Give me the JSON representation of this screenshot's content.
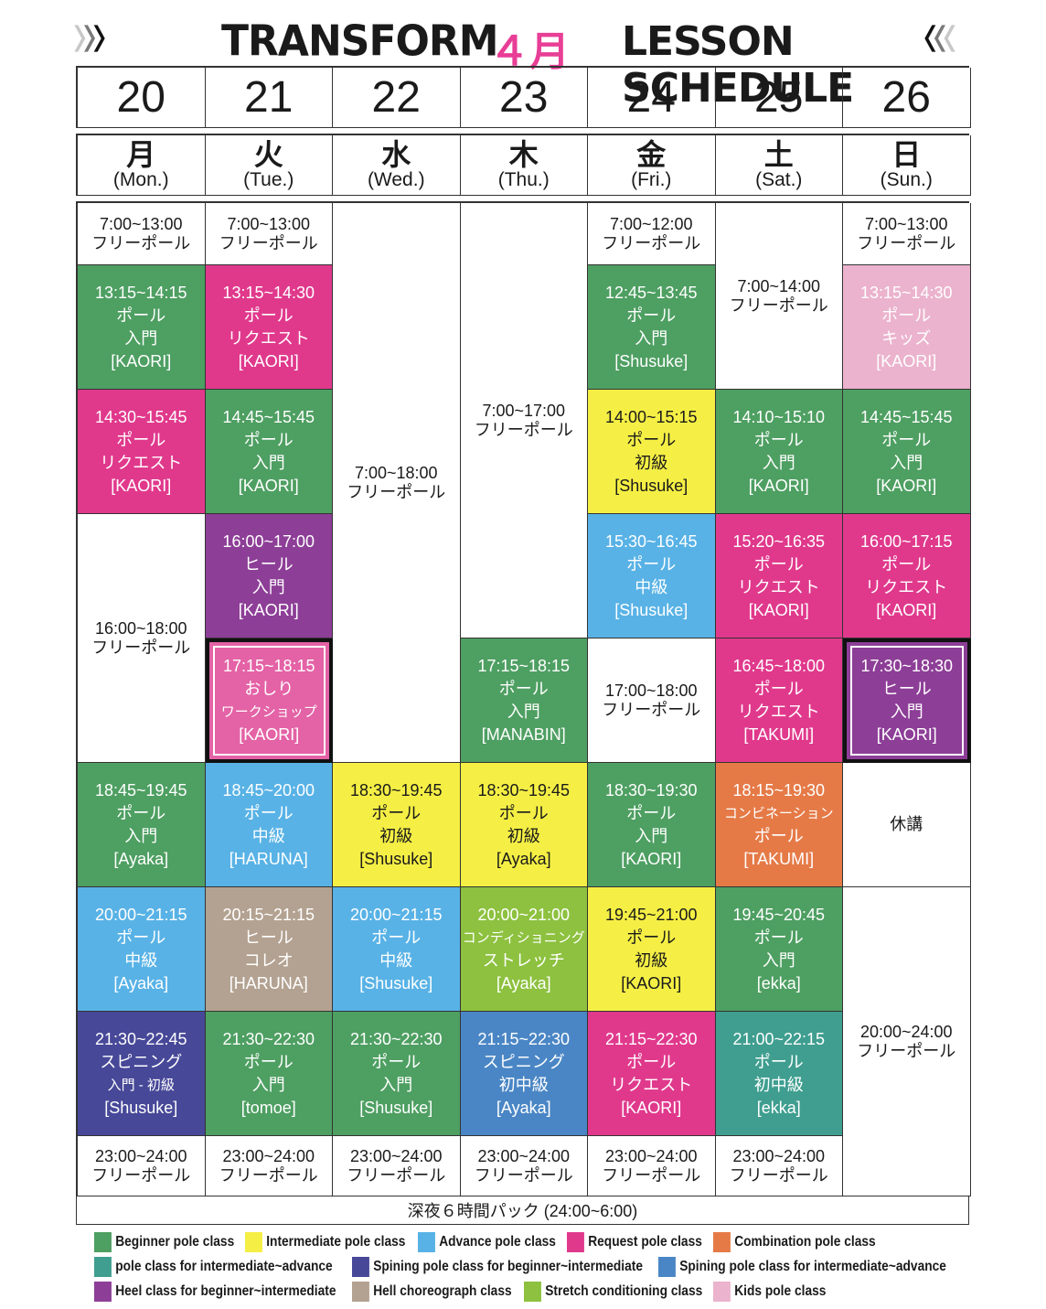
{
  "header": {
    "title_left": "TRANSFORM",
    "month": "４月",
    "title_right": "LESSON SCHEDULE",
    "chevron_icon": "chevron-triple-icon"
  },
  "days": [
    {
      "date": "20",
      "kanji": "月",
      "en": "(Mon.)"
    },
    {
      "date": "21",
      "kanji": "火",
      "en": "(Tue.)"
    },
    {
      "date": "22",
      "kanji": "水",
      "en": "(Wed.)"
    },
    {
      "date": "23",
      "kanji": "木",
      "en": "(Thu.)"
    },
    {
      "date": "24",
      "kanji": "金",
      "en": "(Fri.)"
    },
    {
      "date": "25",
      "kanji": "土",
      "en": "(Sat.)"
    },
    {
      "date": "26",
      "kanji": "日",
      "en": "(Sun.)"
    }
  ],
  "colors": {
    "beginner": "#4e9f62",
    "intermediate": "#f5ef45",
    "advance": "#58b2e6",
    "request": "#e0398c",
    "combination": "#e57a47",
    "inter_adv": "#3f9e8f",
    "spin_beg": "#474898",
    "spin_inter": "#4a86c5",
    "heel": "#8d3e97",
    "choreo": "#b3a291",
    "stretch": "#8dc13f",
    "kids": "#ebb3cd",
    "workshop": "#e462a6",
    "free": "#ffffff"
  },
  "schedule": [
    [
      {
        "row": 0,
        "span": 1,
        "type": "free",
        "lines": [
          "7:00~13:00",
          "フリーポール"
        ]
      },
      {
        "row": 1,
        "span": 1,
        "type": "beginner",
        "lines": [
          "13:15~14:15",
          "ポール",
          "入門",
          "[KAORI]"
        ]
      },
      {
        "row": 2,
        "span": 1,
        "type": "request",
        "lines": [
          "14:30~15:45",
          "ポール",
          "リクエスト",
          "[KAORI]"
        ]
      },
      {
        "row": 3,
        "span": 2,
        "type": "free",
        "lines": [
          "16:00~18:00",
          "フリーポール"
        ]
      },
      {
        "row": 5,
        "span": 1,
        "type": "beginner",
        "lines": [
          "18:45~19:45",
          "ポール",
          "入門",
          "[Ayaka]"
        ]
      },
      {
        "row": 6,
        "span": 1,
        "type": "advance",
        "lines": [
          "20:00~21:15",
          "ポール",
          "中級",
          "[Ayaka]"
        ]
      },
      {
        "row": 7,
        "span": 1,
        "type": "spin_beg",
        "lines": [
          "21:30~22:45",
          "スピニング",
          "入門 - 初級",
          "[Shusuke]"
        ]
      },
      {
        "row": 8,
        "span": 1,
        "type": "free",
        "lines": [
          "23:00~24:00",
          "フリーポール"
        ]
      }
    ],
    [
      {
        "row": 0,
        "span": 1,
        "type": "free",
        "lines": [
          "7:00~13:00",
          "フリーポール"
        ]
      },
      {
        "row": 1,
        "span": 1,
        "type": "request",
        "lines": [
          "13:15~14:30",
          "ポール",
          "リクエスト",
          "[KAORI]"
        ]
      },
      {
        "row": 2,
        "span": 1,
        "type": "beginner",
        "lines": [
          "14:45~15:45",
          "ポール",
          "入門",
          "[KAORI]"
        ]
      },
      {
        "row": 3,
        "span": 1,
        "type": "heel",
        "lines": [
          "16:00~17:00",
          "ヒール",
          "入門",
          "[KAORI]"
        ]
      },
      {
        "row": 4,
        "span": 1,
        "type": "workshop",
        "lines": [
          "17:15~18:15",
          "おしり",
          "ワークショップ",
          "[KAORI]"
        ]
      },
      {
        "row": 5,
        "span": 1,
        "type": "advance",
        "lines": [
          "18:45~20:00",
          "ポール",
          "中級",
          "[HARUNA]"
        ]
      },
      {
        "row": 6,
        "span": 1,
        "type": "choreo",
        "lines": [
          "20:15~21:15",
          "ヒール",
          "コレオ",
          "[HARUNA]"
        ]
      },
      {
        "row": 7,
        "span": 1,
        "type": "beginner",
        "lines": [
          "21:30~22:30",
          "ポール",
          "入門",
          "[tomoe]"
        ]
      },
      {
        "row": 8,
        "span": 1,
        "type": "free",
        "lines": [
          "23:00~24:00",
          "フリーポール"
        ]
      }
    ],
    [
      {
        "row": 0,
        "span": 5,
        "type": "free",
        "lines": [
          "7:00~18:00",
          "フリーポール"
        ]
      },
      {
        "row": 5,
        "span": 1,
        "type": "intermediate",
        "lines": [
          "18:30~19:45",
          "ポール",
          "初級",
          "[Shusuke]"
        ]
      },
      {
        "row": 6,
        "span": 1,
        "type": "advance",
        "lines": [
          "20:00~21:15",
          "ポール",
          "中級",
          "[Shusuke]"
        ]
      },
      {
        "row": 7,
        "span": 1,
        "type": "beginner",
        "lines": [
          "21:30~22:30",
          "ポール",
          "入門",
          "[Shusuke]"
        ]
      },
      {
        "row": 8,
        "span": 1,
        "type": "free",
        "lines": [
          "23:00~24:00",
          "フリーポール"
        ]
      }
    ],
    [
      {
        "row": 0,
        "span": 4,
        "type": "free",
        "lines": [
          "7:00~17:00",
          "フリーポール"
        ]
      },
      {
        "row": 4,
        "span": 1,
        "type": "beginner",
        "lines": [
          "17:15~18:15",
          "ポール",
          "入門",
          "[MANABIN]"
        ]
      },
      {
        "row": 5,
        "span": 1,
        "type": "intermediate",
        "lines": [
          "18:30~19:45",
          "ポール",
          "初級",
          "[Ayaka]"
        ]
      },
      {
        "row": 6,
        "span": 1,
        "type": "stretch",
        "lines": [
          "20:00~21:00",
          "コンディショニング",
          "ストレッチ",
          "[Ayaka]"
        ]
      },
      {
        "row": 7,
        "span": 1,
        "type": "spin_inter",
        "lines": [
          "21:15~22:30",
          "スピニング",
          "初中級",
          "[Ayaka]"
        ]
      },
      {
        "row": 8,
        "span": 1,
        "type": "free",
        "lines": [
          "23:00~24:00",
          "フリーポール"
        ]
      }
    ],
    [
      {
        "row": 0,
        "span": 1,
        "type": "free",
        "lines": [
          "7:00~12:00",
          "フリーポール"
        ]
      },
      {
        "row": 1,
        "span": 1,
        "type": "beginner",
        "lines": [
          "12:45~13:45",
          "ポール",
          "入門",
          "[Shusuke]"
        ]
      },
      {
        "row": 2,
        "span": 1,
        "type": "intermediate",
        "lines": [
          "14:00~15:15",
          "ポール",
          "初級",
          "[Shusuke]"
        ]
      },
      {
        "row": 3,
        "span": 1,
        "type": "advance",
        "lines": [
          "15:30~16:45",
          "ポール",
          "中級",
          "[Shusuke]"
        ]
      },
      {
        "row": 4,
        "span": 1,
        "type": "free",
        "lines": [
          "17:00~18:00",
          "フリーポール"
        ]
      },
      {
        "row": 5,
        "span": 1,
        "type": "beginner",
        "lines": [
          "18:30~19:30",
          "ポール",
          "入門",
          "[KAORI]"
        ]
      },
      {
        "row": 6,
        "span": 1,
        "type": "intermediate",
        "lines": [
          "19:45~21:00",
          "ポール",
          "初級",
          "[KAORI]"
        ]
      },
      {
        "row": 7,
        "span": 1,
        "type": "request",
        "lines": [
          "21:15~22:30",
          "ポール",
          "リクエスト",
          "[KAORI]"
        ]
      },
      {
        "row": 8,
        "span": 1,
        "type": "free",
        "lines": [
          "23:00~24:00",
          "フリーポール"
        ]
      }
    ],
    [
      {
        "row": 0,
        "span": 2,
        "type": "free",
        "lines": [
          "7:00~14:00",
          "フリーポール"
        ]
      },
      {
        "row": 2,
        "span": 1,
        "type": "beginner",
        "lines": [
          "14:10~15:10",
          "ポール",
          "入門",
          "[KAORI]"
        ]
      },
      {
        "row": 3,
        "span": 1,
        "type": "request",
        "lines": [
          "15:20~16:35",
          "ポール",
          "リクエスト",
          "[KAORI]"
        ]
      },
      {
        "row": 4,
        "span": 1,
        "type": "request",
        "lines": [
          "16:45~18:00",
          "ポール",
          "リクエスト",
          "[TAKUMI]"
        ]
      },
      {
        "row": 5,
        "span": 1,
        "type": "combination",
        "lines": [
          "18:15~19:30",
          "コンビネーション",
          "ポール",
          "[TAKUMI]"
        ]
      },
      {
        "row": 6,
        "span": 1,
        "type": "beginner",
        "lines": [
          "19:45~20:45",
          "ポール",
          "入門",
          "[ekka]"
        ]
      },
      {
        "row": 7,
        "span": 1,
        "type": "inter_adv",
        "lines": [
          "21:00~22:15",
          "ポール",
          "初中級",
          "[ekka]"
        ]
      },
      {
        "row": 8,
        "span": 1,
        "type": "free",
        "lines": [
          "23:00~24:00",
          "フリーポール"
        ]
      }
    ],
    [
      {
        "row": 0,
        "span": 1,
        "type": "free",
        "lines": [
          "7:00~13:00",
          "フリーポール"
        ]
      },
      {
        "row": 1,
        "span": 1,
        "type": "kids",
        "lines": [
          "13:15~14:30",
          "ポール",
          "キッズ",
          "[KAORI]"
        ]
      },
      {
        "row": 2,
        "span": 1,
        "type": "beginner",
        "lines": [
          "14:45~15:45",
          "ポール",
          "入門",
          "[KAORI]"
        ]
      },
      {
        "row": 3,
        "span": 1,
        "type": "request",
        "lines": [
          "16:00~17:15",
          "ポール",
          "リクエスト",
          "[KAORI]"
        ]
      },
      {
        "row": 4,
        "span": 1,
        "type": "heel",
        "lines": [
          "17:30~18:30",
          "ヒール",
          "入門",
          "[KAORI]"
        ]
      },
      {
        "row": 5,
        "span": 1,
        "type": "free",
        "lines": [
          "休講"
        ]
      },
      {
        "row": 6,
        "span": 3,
        "type": "free",
        "lines": [
          "20:00~24:00",
          "フリーポール"
        ]
      }
    ]
  ],
  "footer_note": "深夜６時間パック (24:00~6:00)",
  "legend": [
    {
      "type": "beginner",
      "label": "Beginner pole class"
    },
    {
      "type": "intermediate",
      "label": "Intermediate pole class"
    },
    {
      "type": "advance",
      "label": "Advance pole class"
    },
    {
      "type": "request",
      "label": "Request pole class"
    },
    {
      "type": "combination",
      "label": "Combination pole class"
    },
    {
      "type": "inter_adv",
      "label": "pole class for intermediate~advance"
    },
    {
      "type": "spin_beg",
      "label": "Spining pole class for beginner~intermediate"
    },
    {
      "type": "spin_inter",
      "label": "Spining pole class for intermediate~advance"
    },
    {
      "type": "heel",
      "label": "Heel class for beginner~intermediate"
    },
    {
      "type": "choreo",
      "label": "Hell choreograph class"
    },
    {
      "type": "stretch",
      "label": "Stretch conditioning class"
    },
    {
      "type": "kids",
      "label": "Kids pole class"
    }
  ]
}
